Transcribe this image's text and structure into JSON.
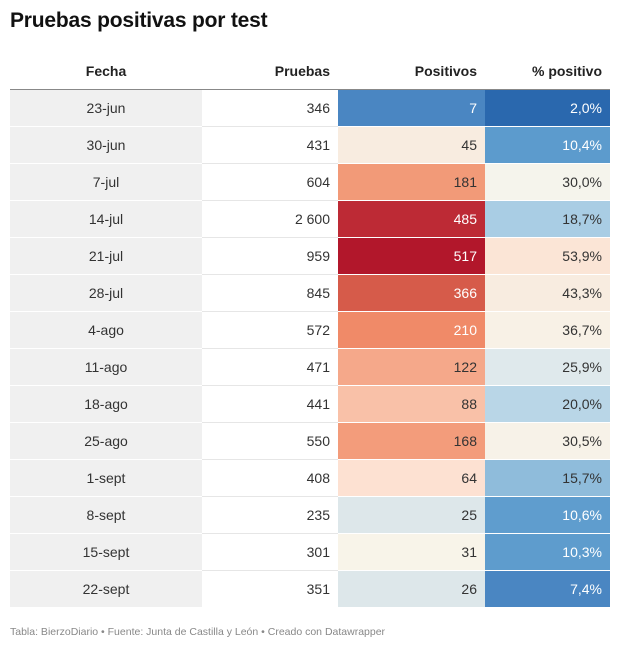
{
  "title": "Pruebas positivas por test",
  "footer": "Tabla: BierzoDiario • Fuente: Junta de Castilla y León • Creado con Datawrapper",
  "chart_data": {
    "type": "table",
    "columns": [
      "Fecha",
      "Pruebas",
      "Positivos",
      "% positivo"
    ],
    "rows": [
      {
        "fecha": "23-jun",
        "pruebas": "346",
        "positivos": "7",
        "pct": "2,0%",
        "pos_bg": "#4a86c2",
        "pos_fg": "#ffffff",
        "pct_bg": "#2a68ae",
        "pct_fg": "#ffffff"
      },
      {
        "fecha": "30-jun",
        "pruebas": "431",
        "positivos": "45",
        "pct": "10,4%",
        "pos_bg": "#f8ece0",
        "pos_fg": "#333333",
        "pct_bg": "#5c9bcd",
        "pct_fg": "#ffffff"
      },
      {
        "fecha": "7-jul",
        "pruebas": "604",
        "positivos": "181",
        "pct": "30,0%",
        "pos_bg": "#f29a78",
        "pos_fg": "#333333",
        "pct_bg": "#f5f4ec",
        "pct_fg": "#333333"
      },
      {
        "fecha": "14-jul",
        "pruebas": "2 600",
        "positivos": "485",
        "pct": "18,7%",
        "pos_bg": "#bd2a35",
        "pos_fg": "#ffffff",
        "pct_bg": "#a9cde4",
        "pct_fg": "#333333"
      },
      {
        "fecha": "21-jul",
        "pruebas": "959",
        "positivos": "517",
        "pct": "53,9%",
        "pos_bg": "#b2172b",
        "pos_fg": "#ffffff",
        "pct_bg": "#fbe5d6",
        "pct_fg": "#333333"
      },
      {
        "fecha": "28-jul",
        "pruebas": "845",
        "positivos": "366",
        "pct": "43,3%",
        "pos_bg": "#d65b4a",
        "pos_fg": "#ffffff",
        "pct_bg": "#f8ece0",
        "pct_fg": "#333333"
      },
      {
        "fecha": "4-ago",
        "pruebas": "572",
        "positivos": "210",
        "pct": "36,7%",
        "pos_bg": "#f08a68",
        "pos_fg": "#ffffff",
        "pct_bg": "#f8f1e6",
        "pct_fg": "#333333"
      },
      {
        "fecha": "11-ago",
        "pruebas": "471",
        "positivos": "122",
        "pct": "25,9%",
        "pos_bg": "#f5a88a",
        "pos_fg": "#333333",
        "pct_bg": "#dfe9ec",
        "pct_fg": "#333333"
      },
      {
        "fecha": "18-ago",
        "pruebas": "441",
        "positivos": "88",
        "pct": "20,0%",
        "pos_bg": "#f9c1a8",
        "pos_fg": "#333333",
        "pct_bg": "#b9d6e7",
        "pct_fg": "#333333"
      },
      {
        "fecha": "25-ago",
        "pruebas": "550",
        "positivos": "168",
        "pct": "30,5%",
        "pos_bg": "#f39c7b",
        "pos_fg": "#333333",
        "pct_bg": "#f7f2e8",
        "pct_fg": "#333333"
      },
      {
        "fecha": "1-sept",
        "pruebas": "408",
        "positivos": "64",
        "pct": "15,7%",
        "pos_bg": "#fde1d2",
        "pos_fg": "#333333",
        "pct_bg": "#8fbcdb",
        "pct_fg": "#333333"
      },
      {
        "fecha": "8-sept",
        "pruebas": "235",
        "positivos": "25",
        "pct": "10,6%",
        "pos_bg": "#dde7ea",
        "pos_fg": "#333333",
        "pct_bg": "#5f9dce",
        "pct_fg": "#ffffff"
      },
      {
        "fecha": "15-sept",
        "pruebas": "301",
        "positivos": "31",
        "pct": "10,3%",
        "pos_bg": "#f8f4e9",
        "pos_fg": "#333333",
        "pct_bg": "#5e9ccd",
        "pct_fg": "#ffffff"
      },
      {
        "fecha": "22-sept",
        "pruebas": "351",
        "positivos": "26",
        "pct": "7,4%",
        "pos_bg": "#dde7ea",
        "pos_fg": "#333333",
        "pct_bg": "#4a86c2",
        "pct_fg": "#ffffff"
      }
    ]
  }
}
